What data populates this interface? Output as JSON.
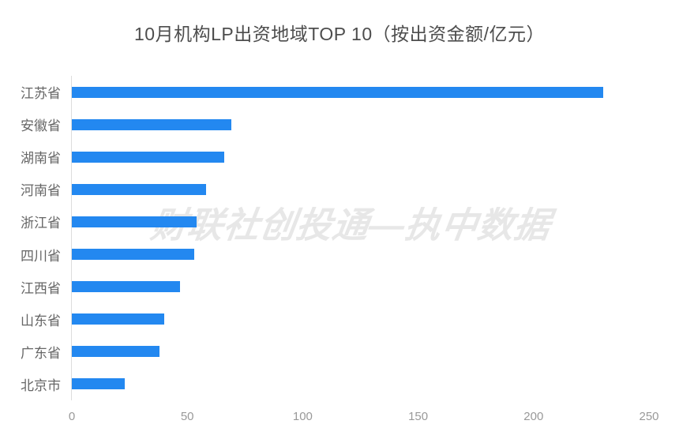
{
  "title": "10月机构LP出资地域TOP 10（按出资金额/亿元）",
  "watermark": "财联社创投通—执中数据",
  "colors": {
    "bar": "#2388f0",
    "title_text": "#4d4d4d",
    "category_text": "#666666",
    "axis_tick_text": "#999999",
    "axis_line": "#dddddd",
    "watermark_text": "#e7e7e7",
    "background": "#ffffff"
  },
  "chart_data": {
    "type": "bar",
    "orientation": "horizontal",
    "title": "10月机构LP出资地域TOP 10（按出资金额/亿元）",
    "categories": [
      "江苏省",
      "安徽省",
      "湖南省",
      "河南省",
      "浙江省",
      "四川省",
      "江西省",
      "山东省",
      "广东省",
      "北京市"
    ],
    "values": [
      230,
      69,
      66,
      58,
      54,
      53,
      47,
      40,
      38,
      23
    ],
    "unit": "亿元",
    "xlabel": "",
    "ylabel": "",
    "xlim": [
      0,
      250
    ],
    "x_ticks": [
      0,
      50,
      100,
      150,
      200,
      250
    ],
    "grid": false,
    "legend": false,
    "annotations": [
      "财联社创投通—执中数据"
    ]
  }
}
